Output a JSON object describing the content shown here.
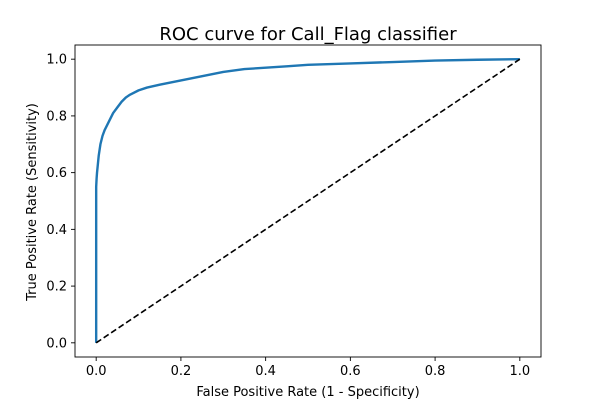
{
  "chart_data": {
    "type": "line",
    "title": "ROC curve for Call_Flag classifier",
    "xlabel": "False Positive Rate (1 - Specificity)",
    "ylabel": "True Positive Rate (Sensitivity)",
    "xlim": [
      -0.05,
      1.05
    ],
    "ylim": [
      -0.05,
      1.05
    ],
    "xticks": [
      0.0,
      0.2,
      0.4,
      0.6,
      0.8,
      1.0
    ],
    "yticks": [
      0.0,
      0.2,
      0.4,
      0.6,
      0.8,
      1.0
    ],
    "xtick_labels": [
      "0.0",
      "0.2",
      "0.4",
      "0.6",
      "0.8",
      "1.0"
    ],
    "ytick_labels": [
      "0.0",
      "0.2",
      "0.4",
      "0.6",
      "0.8",
      "1.0"
    ],
    "grid": false,
    "series": [
      {
        "color": "#1f77b4",
        "style": "solid",
        "x": [
          0.0,
          0.0,
          0.001,
          0.002,
          0.004,
          0.006,
          0.008,
          0.01,
          0.015,
          0.02,
          0.03,
          0.04,
          0.05,
          0.06,
          0.07,
          0.08,
          0.1,
          0.12,
          0.15,
          0.2,
          0.25,
          0.3,
          0.35,
          0.4,
          0.45,
          0.5,
          0.6,
          0.7,
          0.8,
          0.9,
          1.0
        ],
        "y": [
          0.0,
          0.55,
          0.58,
          0.6,
          0.63,
          0.66,
          0.68,
          0.7,
          0.73,
          0.75,
          0.78,
          0.81,
          0.83,
          0.85,
          0.865,
          0.875,
          0.89,
          0.9,
          0.91,
          0.925,
          0.94,
          0.955,
          0.965,
          0.97,
          0.975,
          0.98,
          0.985,
          0.99,
          0.995,
          0.998,
          1.0
        ]
      },
      {
        "color": "#000000",
        "style": "dashed",
        "x": [
          0.0,
          1.0
        ],
        "y": [
          0.0,
          1.0
        ]
      }
    ]
  }
}
